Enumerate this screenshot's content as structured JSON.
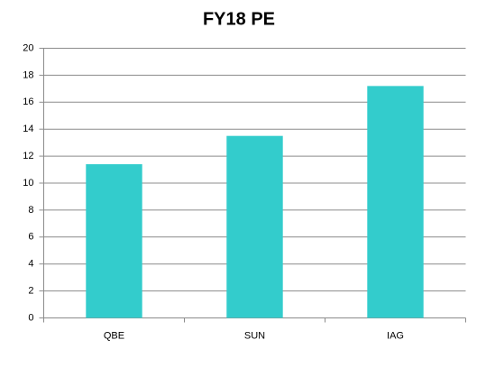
{
  "chart_data": {
    "type": "bar",
    "title": "FY18 PE",
    "categories": [
      "QBE",
      "SUN",
      "IAG"
    ],
    "values": [
      11.4,
      13.5,
      17.2
    ],
    "color": "#33cccc",
    "ylim": [
      0,
      20
    ],
    "yticks": [
      0,
      2,
      4,
      6,
      8,
      10,
      12,
      14,
      16,
      18,
      20
    ],
    "grid": true
  }
}
